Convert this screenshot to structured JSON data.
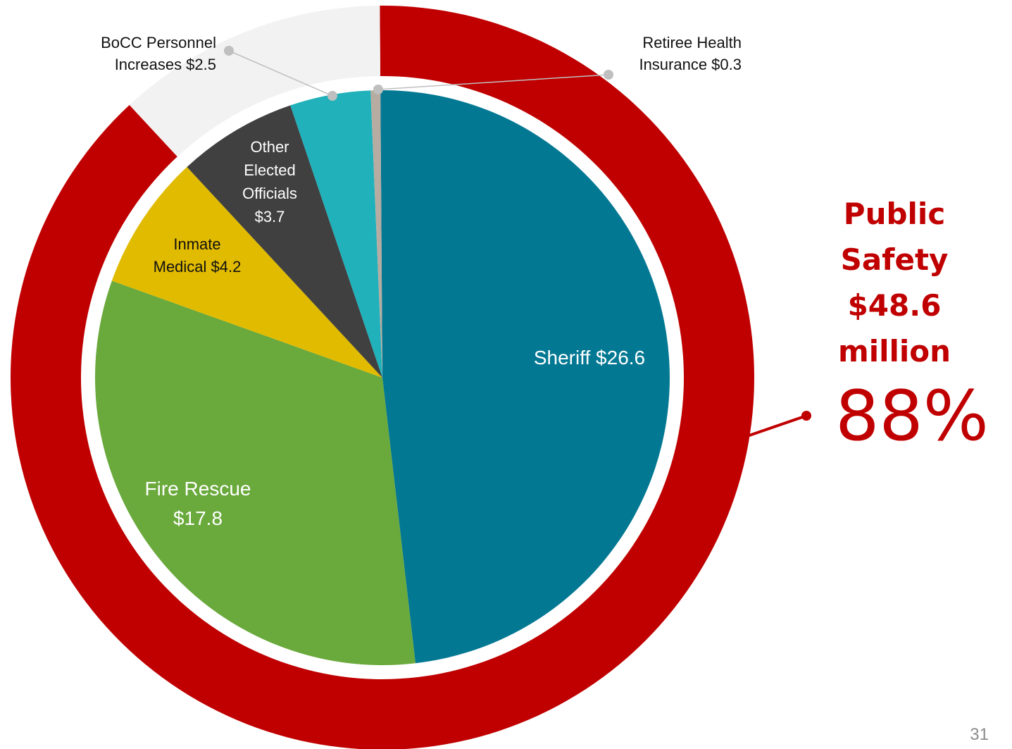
{
  "chart_data": {
    "type": "pie",
    "units": "$ million",
    "slices": [
      {
        "key": "sheriff",
        "label_lines": [
          "Sheriff $26.6"
        ],
        "value": 26.6,
        "color": "#037893",
        "label_color": "#ffffff",
        "group": "public-safety"
      },
      {
        "key": "fire-rescue",
        "label_lines": [
          "Fire Rescue",
          "$17.8"
        ],
        "value": 17.8,
        "color": "#6aa93c",
        "label_color": "#ffffff",
        "group": "public-safety"
      },
      {
        "key": "inmate-medical",
        "label_lines": [
          "Inmate",
          "Medical $4.2"
        ],
        "value": 4.2,
        "color": "#e1bb00",
        "label_color": "#111111",
        "group": "public-safety"
      },
      {
        "key": "other-elected-officials",
        "label_lines": [
          "Other",
          "Elected",
          "Officials",
          "$3.7"
        ],
        "value": 3.7,
        "color": "#404040",
        "label_color": "#ffffff",
        "group": "other"
      },
      {
        "key": "bocc-personnel-increases",
        "label_lines": [
          "BoCC Personnel",
          "Increases $2.5"
        ],
        "value": 2.5,
        "color": "#21b1bb",
        "label_color": "#111111",
        "group": "other"
      },
      {
        "key": "retiree-health-insurance",
        "label_lines": [
          "Retiree Health",
          "Insurance $0.3"
        ],
        "value": 0.3,
        "color": "#b6aca1",
        "label_color": "#111111",
        "group": "other"
      }
    ],
    "outer_ring": {
      "public_safety_color": "#c00000",
      "other_color": "#f2f2f2"
    },
    "summary": {
      "label_lines": [
        "Public",
        "Safety",
        "$48.6",
        "million"
      ],
      "percent": "88%",
      "color": "#c00000"
    }
  },
  "page_number": "31"
}
